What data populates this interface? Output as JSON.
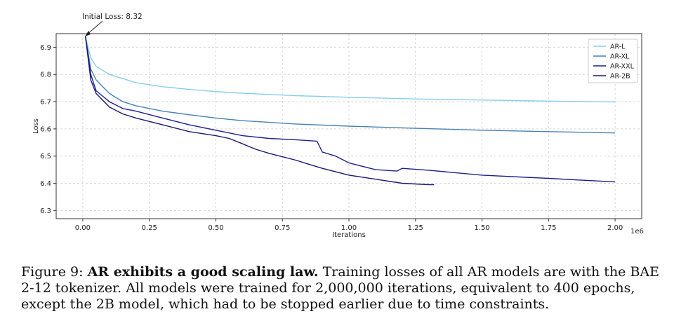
{
  "chart_data": {
    "type": "line",
    "xlabel": "Iterations",
    "ylabel": "Loss",
    "x_offset_label": "1e6",
    "xlim": [
      -0.1,
      2.1
    ],
    "ylim": [
      6.27,
      6.95
    ],
    "xticks": [
      0.0,
      0.25,
      0.5,
      0.75,
      1.0,
      1.25,
      1.5,
      1.75,
      2.0
    ],
    "xtick_labels": [
      "0.00",
      "0.25",
      "0.50",
      "0.75",
      "1.00",
      "1.25",
      "1.50",
      "1.75",
      "2.00"
    ],
    "yticks": [
      6.3,
      6.4,
      6.5,
      6.6,
      6.7,
      6.8,
      6.9
    ],
    "ytick_labels": [
      "6.3",
      "6.4",
      "6.5",
      "6.6",
      "6.7",
      "6.8",
      "6.9"
    ],
    "grid": true,
    "legend_position": "top-right",
    "annotation": {
      "text": "Initial Loss: 8.32",
      "x": 0.0,
      "y": 6.94
    },
    "series": [
      {
        "name": "AR-L",
        "color": "#87CEEB",
        "x": [
          0.01,
          0.03,
          0.05,
          0.1,
          0.15,
          0.2,
          0.3,
          0.4,
          0.5,
          0.6,
          0.8,
          1.0,
          1.25,
          1.5,
          1.75,
          2.0
        ],
        "y": [
          6.94,
          6.86,
          6.83,
          6.8,
          6.785,
          6.77,
          6.755,
          6.745,
          6.737,
          6.731,
          6.722,
          6.716,
          6.71,
          6.706,
          6.702,
          6.699
        ]
      },
      {
        "name": "AR-XL",
        "color": "#4682B4",
        "x": [
          0.01,
          0.03,
          0.05,
          0.1,
          0.15,
          0.2,
          0.3,
          0.4,
          0.5,
          0.6,
          0.8,
          1.0,
          1.25,
          1.5,
          1.75,
          2.0
        ],
        "y": [
          6.94,
          6.82,
          6.78,
          6.73,
          6.7,
          6.685,
          6.665,
          6.652,
          6.64,
          6.63,
          6.618,
          6.61,
          6.602,
          6.595,
          6.59,
          6.585
        ]
      },
      {
        "name": "AR-XXL",
        "color": "#1F1F8F",
        "x": [
          0.01,
          0.03,
          0.05,
          0.1,
          0.15,
          0.2,
          0.3,
          0.4,
          0.5,
          0.6,
          0.7,
          0.8,
          0.88,
          0.9,
          0.95,
          1.0,
          1.1,
          1.18,
          1.2,
          1.3,
          1.5,
          1.75,
          2.0
        ],
        "y": [
          6.94,
          6.8,
          6.74,
          6.7,
          6.675,
          6.665,
          6.64,
          6.615,
          6.595,
          6.575,
          6.565,
          6.56,
          6.555,
          6.515,
          6.5,
          6.475,
          6.45,
          6.445,
          6.455,
          6.448,
          6.43,
          6.418,
          6.405
        ]
      },
      {
        "name": "AR-2B",
        "color": "#191970",
        "x": [
          0.01,
          0.03,
          0.05,
          0.1,
          0.15,
          0.2,
          0.3,
          0.4,
          0.5,
          0.55,
          0.6,
          0.65,
          0.7,
          0.8,
          0.85,
          0.9,
          1.0,
          1.1,
          1.2,
          1.3,
          1.32
        ],
        "y": [
          6.94,
          6.78,
          6.73,
          6.68,
          6.655,
          6.64,
          6.615,
          6.59,
          6.575,
          6.565,
          6.545,
          6.525,
          6.51,
          6.485,
          6.47,
          6.455,
          6.43,
          6.415,
          6.4,
          6.395,
          6.395
        ]
      }
    ]
  },
  "caption": {
    "prefix": "Figure 9: ",
    "bold": "AR exhibits a good scaling law.",
    "body": " Training losses of all AR models are with the BAE 2-12 tokenizer. All models were trained for 2,000,000 iterations, equivalent to 400 epochs, except the 2B model, which had to be stopped earlier due to time constraints."
  }
}
